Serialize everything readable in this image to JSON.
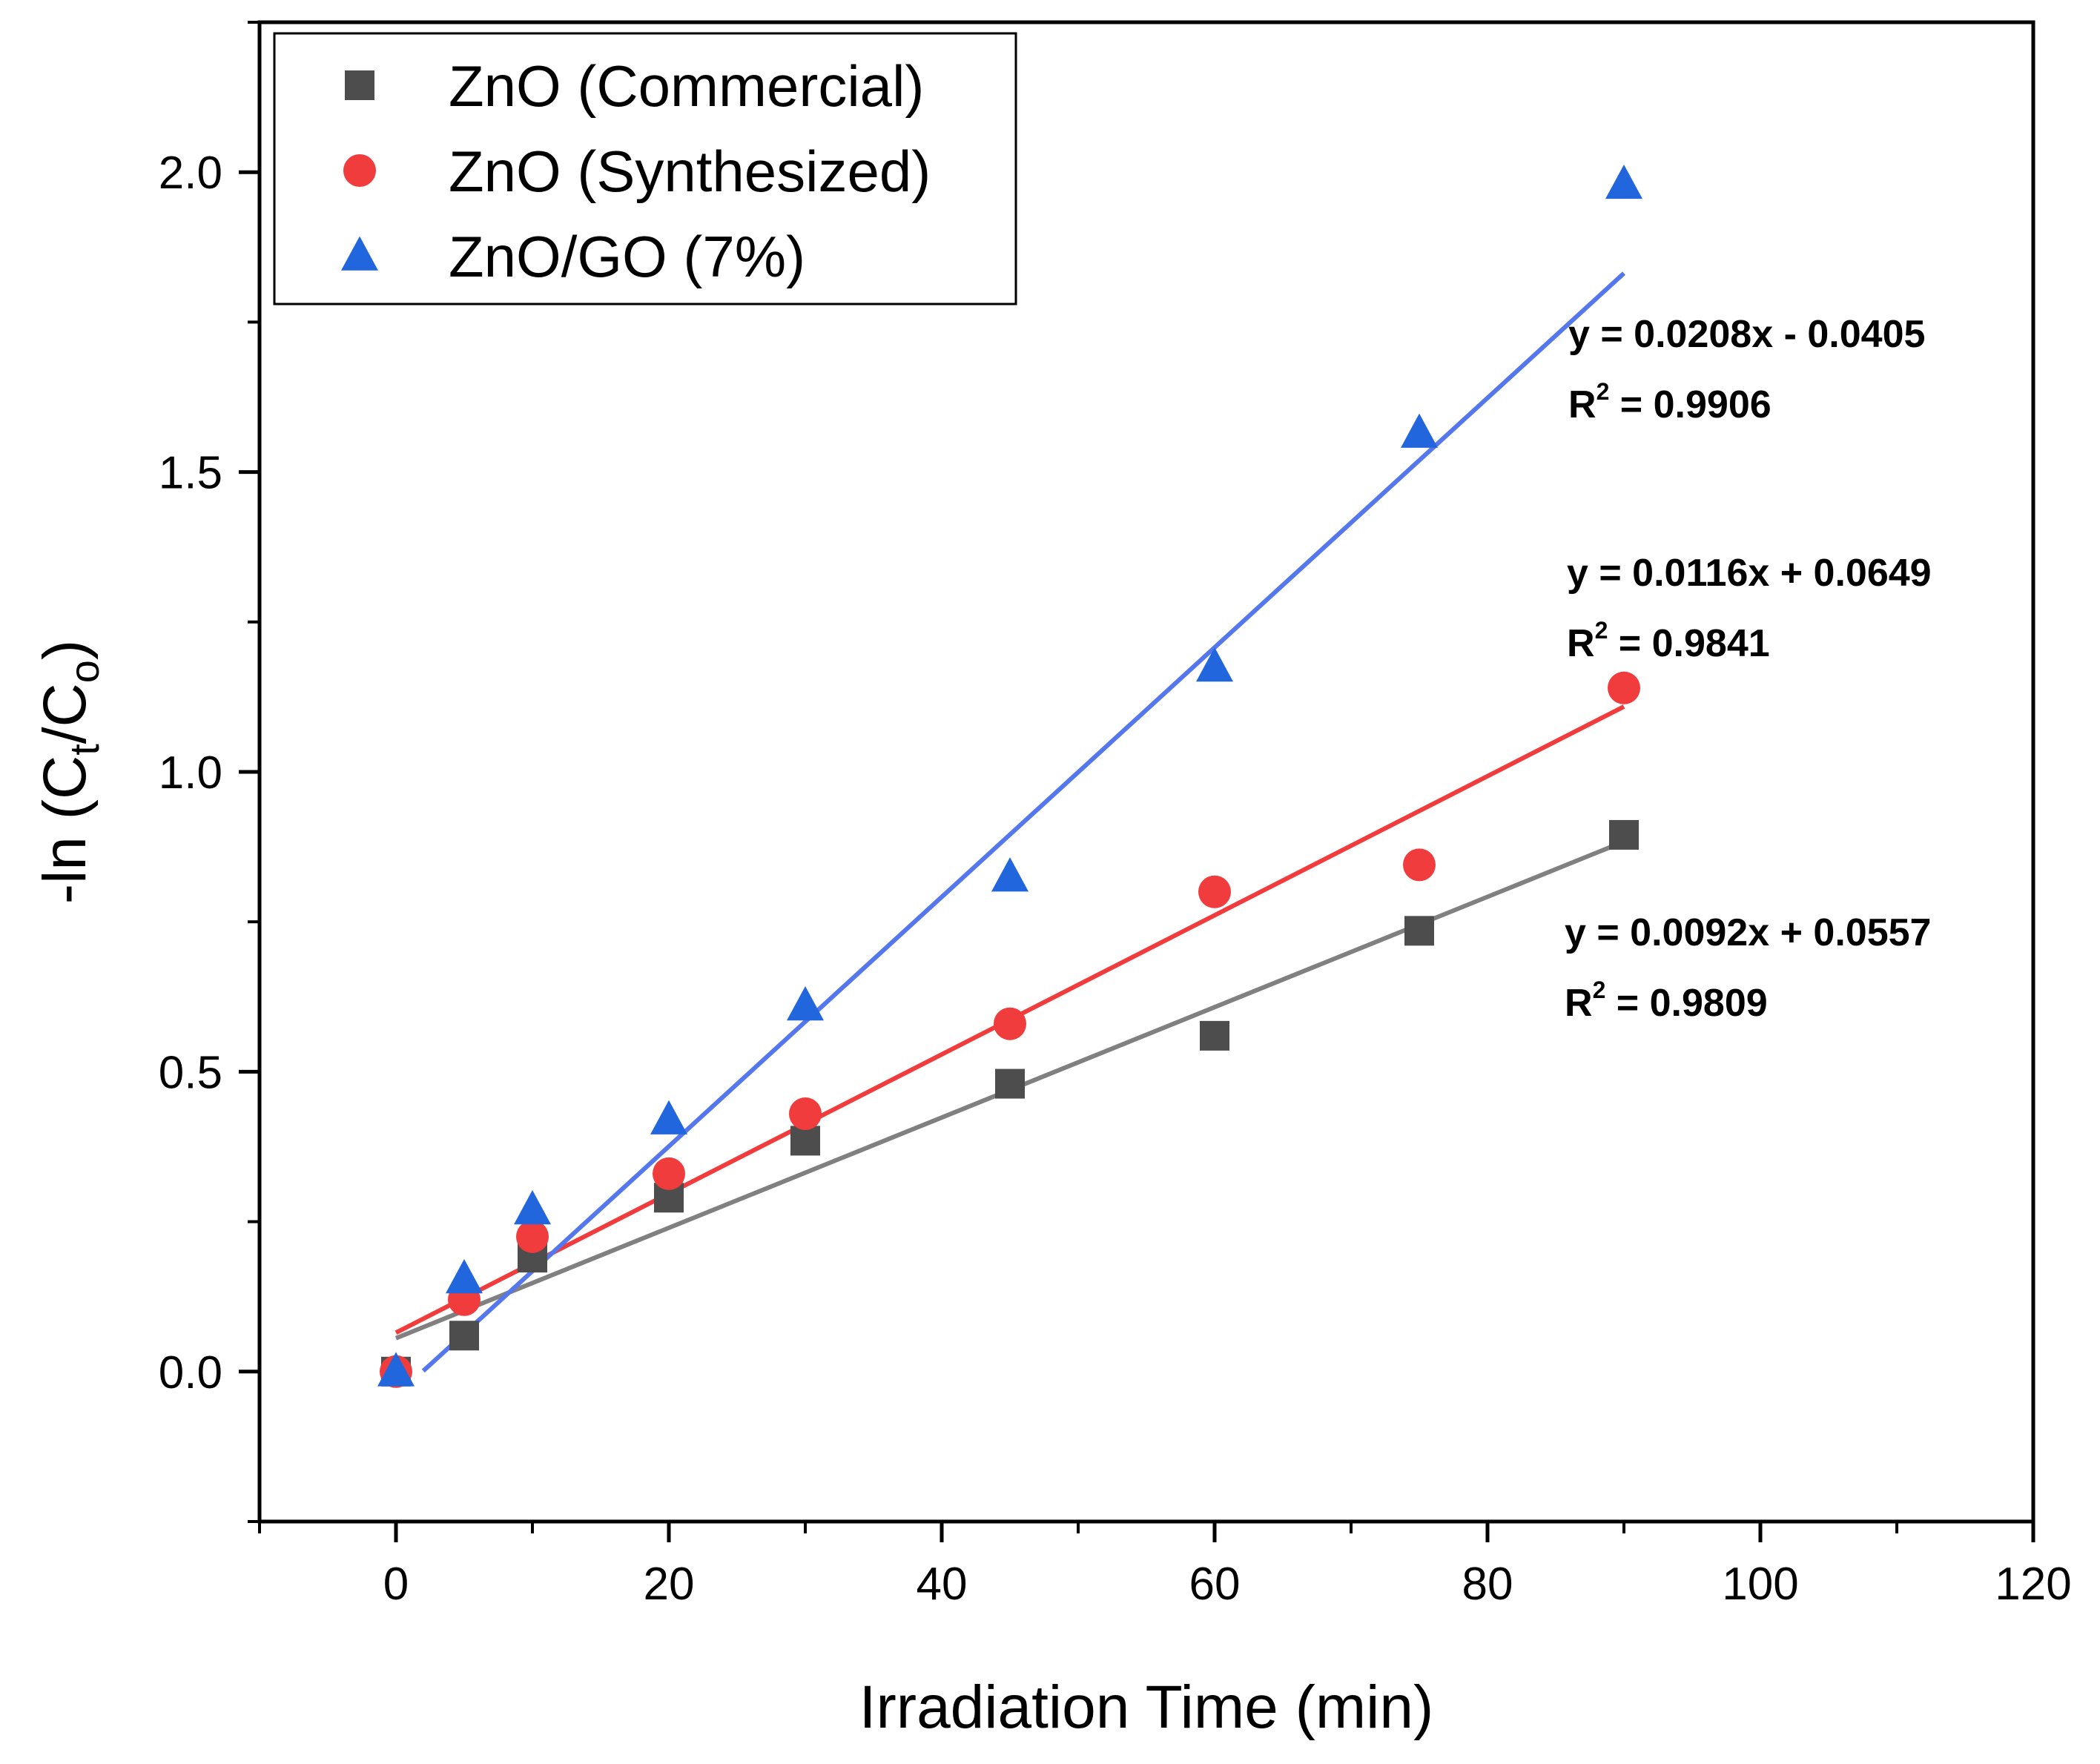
{
  "chart_data": {
    "type": "scatter",
    "xlabel": "Irradiation Time (min)",
    "ylabel": {
      "prefix": "-ln (C",
      "sub1": "t",
      "mid": "/C",
      "sub2": "o",
      "suffix": ")"
    },
    "xlim": [
      -10,
      120
    ],
    "ylim": [
      -0.25,
      2.25
    ],
    "xticks": [
      0,
      20,
      40,
      60,
      80,
      100,
      120
    ],
    "xtick_labels": [
      "0",
      "20",
      "40",
      "60",
      "80",
      "100",
      "120"
    ],
    "yticks": [
      0.0,
      0.5,
      1.0,
      1.5,
      2.0
    ],
    "ytick_labels": [
      "0.0",
      "0.5",
      "1.0",
      "1.5",
      "2.0"
    ],
    "grid": false,
    "legend_position": "top-left",
    "series": [
      {
        "name": "ZnO (Commercial)",
        "marker": "square",
        "color": "#4d4d4d",
        "line_color": "#808080",
        "x": [
          0,
          5,
          10,
          20,
          30,
          45,
          60,
          75,
          90
        ],
        "y": [
          0.0,
          0.06,
          0.19,
          0.29,
          0.385,
          0.48,
          0.56,
          0.735,
          0.895
        ],
        "fit": {
          "slope": 0.0092,
          "intercept": 0.0557,
          "x_range": [
            0,
            90
          ]
        },
        "equation": "y = 0.0092x + 0.0557",
        "r2_label": "R",
        "r2_value": " = 0.9809"
      },
      {
        "name": "ZnO (Synthesized)",
        "marker": "circle",
        "color": "#f03c3c",
        "line_color": "#f03c3c",
        "x": [
          0,
          5,
          10,
          20,
          30,
          45,
          60,
          75,
          90
        ],
        "y": [
          0.0,
          0.12,
          0.225,
          0.33,
          0.43,
          0.58,
          0.8,
          0.845,
          1.14
        ],
        "fit": {
          "slope": 0.0116,
          "intercept": 0.0649,
          "x_range": [
            0,
            90
          ]
        },
        "equation": "y = 0.0116x + 0.0649",
        "r2_label": "R",
        "r2_value": " = 0.9841"
      },
      {
        "name": "ZnO/GO (7%)",
        "marker": "triangle",
        "color": "#2266dd",
        "line_color": "#5577ee",
        "x": [
          0,
          5,
          10,
          20,
          30,
          45,
          60,
          75,
          90
        ],
        "y": [
          0.0,
          0.155,
          0.27,
          0.42,
          0.61,
          0.825,
          1.175,
          1.565,
          1.98
        ],
        "fit": {
          "slope": 0.0208,
          "intercept": -0.0405,
          "x_range": [
            2,
            90
          ]
        },
        "equation": "y = 0.0208x - 0.0405",
        "r2_label": "R",
        "r2_value": " = 0.9906"
      }
    ]
  }
}
